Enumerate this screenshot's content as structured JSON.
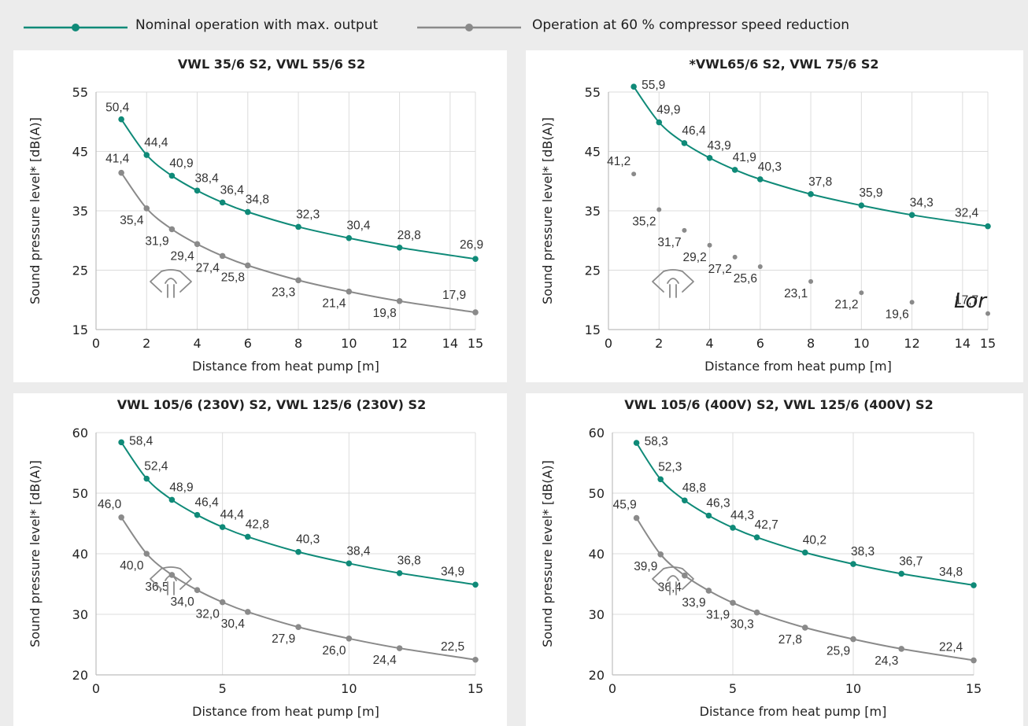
{
  "legend": {
    "nominal_label": "Nominal operation with max. output",
    "reduced_label": "Operation at 60 % compressor speed reduction"
  },
  "colors": {
    "nominal": "#0f8a78",
    "reduced": "#8a8a8a",
    "grid": "#dcdcdc"
  },
  "watermark": "Lor",
  "chart_data": [
    {
      "type": "line",
      "title": "VWL 35/6 S2,  VWL 55/6 S2",
      "xlabel": "Distance from heat pump [m]",
      "ylabel": "Sound pressure level* [dB(A)]",
      "xlim": [
        0,
        15
      ],
      "ylim": [
        15,
        55
      ],
      "xticks": [
        0,
        2,
        4,
        6,
        8,
        10,
        12,
        14,
        15
      ],
      "yticks": [
        15,
        25,
        35,
        45,
        55
      ],
      "x_grid": true,
      "y_grid": true,
      "x": [
        1,
        2,
        3,
        4,
        5,
        6,
        8,
        10,
        12,
        15
      ],
      "series": [
        {
          "name": "Nominal operation with max. output",
          "style": "line",
          "values": [
            50.4,
            44.4,
            40.9,
            38.4,
            36.4,
            34.8,
            32.3,
            30.4,
            28.8,
            26.9
          ],
          "labels": [
            "50,4",
            "44,4",
            "40,9",
            "38,4",
            "36,4",
            "34,8",
            "32,3",
            "30,4",
            "28,8",
            "26,9"
          ]
        },
        {
          "name": "Operation at 60 % compressor speed reduction",
          "style": "line",
          "values": [
            41.4,
            35.4,
            31.9,
            29.4,
            27.4,
            25.8,
            23.3,
            21.4,
            19.8,
            17.9
          ],
          "labels": [
            "41,4",
            "35,4",
            "31,9",
            "29,4",
            "27,4",
            "25,8",
            "23,3",
            "21,4",
            "19,8",
            "17,9"
          ]
        }
      ]
    },
    {
      "type": "line",
      "title": "*VWL65/6 S2,  VWL 75/6 S2",
      "xlabel": "Distance from heat pump [m]",
      "ylabel": "Sound pressure level* [dB(A)]",
      "xlim": [
        0,
        15
      ],
      "ylim": [
        15,
        55
      ],
      "xticks": [
        0,
        2,
        4,
        6,
        8,
        10,
        12,
        14,
        15
      ],
      "yticks": [
        15,
        25,
        35,
        45,
        55
      ],
      "x_grid": true,
      "y_grid": true,
      "x": [
        1,
        2,
        3,
        4,
        5,
        6,
        8,
        10,
        12,
        15
      ],
      "series": [
        {
          "name": "Nominal operation with max. output",
          "style": "line",
          "values": [
            55.9,
            49.9,
            46.4,
            43.9,
            41.9,
            40.3,
            37.8,
            35.9,
            34.3,
            32.4
          ],
          "labels": [
            "55,9",
            "49,9",
            "46,4",
            "43,9",
            "41,9",
            "40,3",
            "37,8",
            "35,9",
            "34,3",
            "32,4"
          ]
        },
        {
          "name": "Operation at 60 % compressor speed reduction",
          "style": "points",
          "values": [
            41.2,
            35.2,
            31.7,
            29.2,
            27.2,
            25.6,
            23.1,
            21.2,
            19.6,
            17.7
          ],
          "labels": [
            "41,2",
            "35,2",
            "31,7",
            "29,2",
            "27,2",
            "25,6",
            "23,1",
            "21,2",
            "19,6",
            "17,7"
          ]
        }
      ]
    },
    {
      "type": "line",
      "title": "VWL 105/6 (230V) S2,  VWL 125/6 (230V) S2",
      "xlabel": "Distance from heat pump [m]",
      "ylabel": "Sound pressure level* [dB(A)]",
      "xlim": [
        0,
        15
      ],
      "ylim": [
        20,
        60
      ],
      "xticks": [
        0,
        5,
        10,
        15
      ],
      "yticks": [
        20,
        30,
        40,
        50,
        60
      ],
      "x_grid": true,
      "y_grid": true,
      "x": [
        1,
        2,
        3,
        4,
        5,
        6,
        8,
        10,
        12,
        15
      ],
      "series": [
        {
          "name": "Nominal operation with max. output",
          "style": "line",
          "values": [
            58.4,
            52.4,
            48.9,
            46.4,
            44.4,
            42.8,
            40.3,
            38.4,
            36.8,
            34.9
          ],
          "labels": [
            "58,4",
            "52,4",
            "48,9",
            "46,4",
            "44,4",
            "42,8",
            "40,3",
            "38,4",
            "36,8",
            "34,9"
          ]
        },
        {
          "name": "Operation at 60 % compressor speed reduction",
          "style": "line",
          "values": [
            46.0,
            40.0,
            36.5,
            34.0,
            32.0,
            30.4,
            27.9,
            26.0,
            24.4,
            22.5
          ],
          "labels": [
            "46,0",
            "40,0",
            "36,5",
            "34,0",
            "32,0",
            "30,4",
            "27,9",
            "26,0",
            "24,4",
            "22,5"
          ]
        }
      ]
    },
    {
      "type": "line",
      "title": "VWL 105/6 (400V) S2,  VWL 125/6 (400V) S2",
      "xlabel": "Distance from heat pump [m]",
      "ylabel": "Sound pressure level* [dB(A)]",
      "xlim": [
        0,
        15
      ],
      "ylim": [
        20,
        60
      ],
      "xticks": [
        0,
        5,
        10,
        15
      ],
      "yticks": [
        20,
        30,
        40,
        50,
        60
      ],
      "x_grid": true,
      "y_grid": true,
      "x": [
        1,
        2,
        3,
        4,
        5,
        6,
        8,
        10,
        12,
        15
      ],
      "series": [
        {
          "name": "Nominal operation with max. output",
          "style": "line",
          "values": [
            58.3,
            52.3,
            48.8,
            46.3,
            44.3,
            42.7,
            40.2,
            38.3,
            36.7,
            34.8
          ],
          "labels": [
            "58,3",
            "52,3",
            "48,8",
            "46,3",
            "44,3",
            "42,7",
            "40,2",
            "38,3",
            "36,7",
            "34,8"
          ]
        },
        {
          "name": "Operation at 60 % compressor speed reduction",
          "style": "line",
          "values": [
            45.9,
            39.9,
            36.4,
            33.9,
            31.9,
            30.3,
            27.8,
            25.9,
            24.3,
            22.4
          ],
          "labels": [
            "45,9",
            "39,9",
            "36,4",
            "33,9",
            "31,9",
            "30,3",
            "27,8",
            "25,9",
            "24,3",
            "22,4"
          ]
        }
      ]
    }
  ]
}
